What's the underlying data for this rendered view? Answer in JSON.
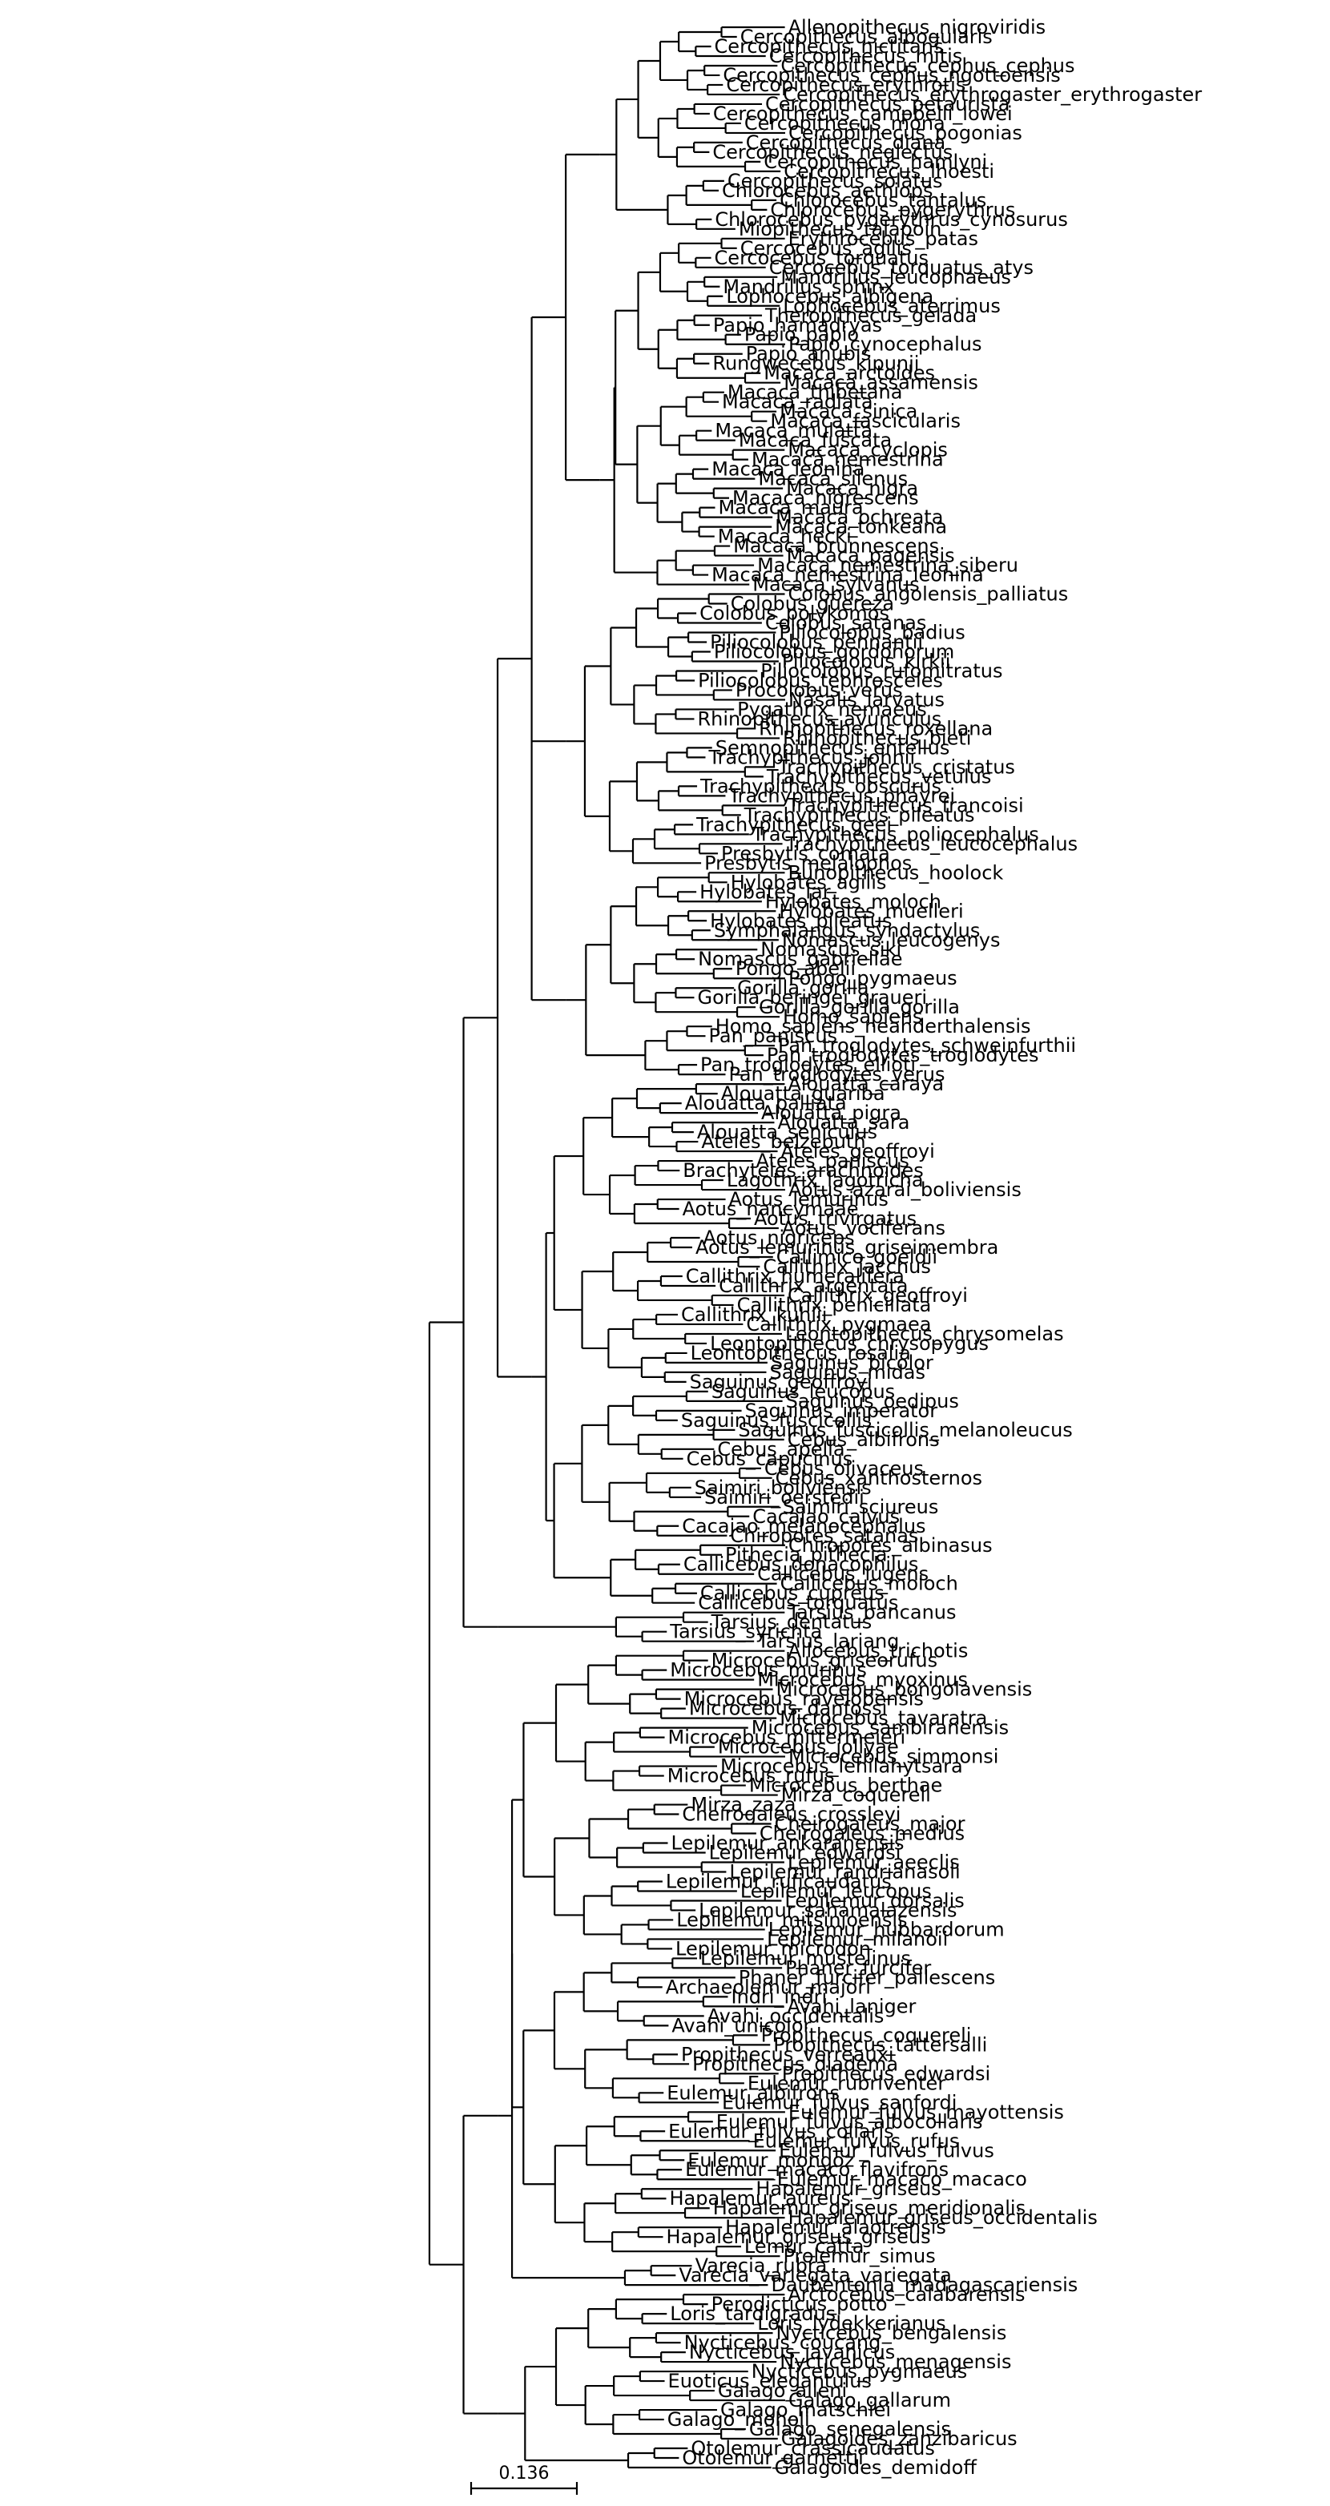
{
  "scale_bar": {
    "label": "0.136"
  },
  "tree": {
    "name": "root",
    "children": [
      {
        "name": "anthropoidea",
        "children": [
          {
            "name": "haplorhini-main",
            "children": [
              {
                "name": "catarrhini",
                "children": [
                  {
                    "name": "cercopithecidae",
                    "children": [
                      {
                        "name": "cercopithecini",
                        "leaves": [
                          "Allenopithecus_nigroviridis",
                          "Cercopithecus_albogularis",
                          "Cercopithecus_nictitans",
                          "Cercopithecus_mitis",
                          "Cercopithecus_cephus_cephus",
                          "Cercopithecus_cephus_ngottoensis",
                          "Cercopithecus_erythrotis",
                          "Cercopithecus_erythrogaster_erythrogaster",
                          "Cercopithecus_petaurista",
                          "Cercopithecus_campbelli_lowei",
                          "Cercopithecus_mona",
                          "Cercopithecus_pogonias",
                          "Cercopithecus_diana",
                          "Cercopithecus_neglectus",
                          "Cercopithecus_hamlyni",
                          "Cercopithecus_lhoesti",
                          "Cercopithecus_solatus",
                          "Chlorocebus_aethiops",
                          "Chlorocebus_tantalus",
                          "Chlorocebus_pygerythrus",
                          "Chlorocebus_pygerythrus_cynosurus",
                          "Miopithecus_talapoin"
                        ]
                      },
                      {
                        "name": "papionini",
                        "leaves": [
                          "Erythrocebus_patas",
                          "Cercocebus_agilis",
                          "Cercocebus_torquatus",
                          "Cercocebus_torquatus_atys",
                          "Mandrillus_leucophaeus",
                          "Mandrillus_sphinx",
                          "Lophocebus_albigena",
                          "Lophocebus_aterrimus",
                          "Theropithecus_gelada",
                          "Papio_hamadryas",
                          "Papio_papio",
                          "Papio_cynocephalus",
                          "Papio_anubis",
                          "Rungwecebus_kipunji",
                          "Macaca_arctoides",
                          "Macaca_assamensis",
                          "Macaca_thibetana",
                          "Macaca_radiata",
                          "Macaca_sinica",
                          "Macaca_fascicularis",
                          "Macaca_mulatta",
                          "Macaca_fuscata",
                          "Macaca_cyclopis",
                          "Macaca_nemestrina",
                          "Macaca_leonina",
                          "Macaca_silenus",
                          "Macaca_nigra",
                          "Macaca_nigrescens",
                          "Macaca_maura",
                          "Macaca_ochreata",
                          "Macaca_tonkeana",
                          "Macaca_hecki",
                          "Macaca_brunnescens",
                          "Macaca_pagensis",
                          "Macaca_nemestrina_siberu",
                          "Macaca_nemestrina_leonina",
                          "Macaca_sylvanus"
                        ]
                      }
                    ]
                  },
                  {
                    "name": "colobinae",
                    "leaves": [
                      "Colobus_angolensis_palliatus",
                      "Colobus_guereza",
                      "Colobus_polykomos",
                      "Colobus_satanas",
                      "Piliocolobus_badius",
                      "Piliocolobus_pennantii",
                      "Piliocolobus_gordonorum",
                      "Piliocolobus_kirkii",
                      "Piliocolobus_rufomitratus",
                      "Piliocolobus_tephrosceles",
                      "Procolobus_verus",
                      "Nasalis_larvatus",
                      "Pygathrix_nemaeus",
                      "Rhinopithecus_avunculus",
                      "Rhinopithecus_roxellana",
                      "Rhinopithecus_bieti",
                      "Semnopithecus_entellus",
                      "Trachypithecus_johnii",
                      "Trachypithecus_cristatus",
                      "Trachypithecus_vetulus",
                      "Trachypithecus_obscurus",
                      "Trachypithecus_phayrei",
                      "Trachypithecus_francoisi",
                      "Trachypithecus_pileatus",
                      "Trachypithecus_geei",
                      "Trachypithecus_poliocephalus",
                      "Trachypithecus_leucocephalus",
                      "Presbytis_comata",
                      "Presbytis_melalophos"
                    ]
                  },
                  {
                    "name": "hominoidea",
                    "leaves": [
                      "Bunopithecus_hoolock",
                      "Hylobates_agilis",
                      "Hylobates_lar",
                      "Hylobates_moloch",
                      "Hylobates_muelleri",
                      "Hylobates_pileatus",
                      "Symphalangus_syndactylus",
                      "Nomascus_leucogenys",
                      "Nomascus_siki",
                      "Nomascus_gabriellae",
                      "Pongo_abelii",
                      "Pongo_pygmaeus",
                      "Gorilla_gorilla",
                      "Gorilla_beringei_graueri",
                      "Gorilla_gorilla_gorilla",
                      "Homo_sapiens",
                      "Homo_sapiens_neanderthalensis",
                      "Pan_paniscus",
                      "Pan_troglodytes_schweinfurthii",
                      "Pan_troglodytes_troglodytes",
                      "Pan_troglodytes_ellioti",
                      "Pan_troglodytes_verus"
                    ]
                  }
                ]
              },
              {
                "name": "platyrrhini",
                "leaves": [
                  "Alouatta_caraya",
                  "Alouatta_guariba",
                  "Alouatta_palliata",
                  "Alouatta_pigra",
                  "Alouatta_sara",
                  "Alouatta_seniculus",
                  "Ateles_belzebuth",
                  "Ateles_geoffroyi",
                  "Ateles_paniscus",
                  "Brachyteles_arachnoides",
                  "Lagothrix_lagotricha",
                  "Aotus_azarai_boliviensis",
                  "Aotus_lemurinus",
                  "Aotus_nancymaae",
                  "Aotus_trivirgatus",
                  "Aotus_vociferans",
                  "Aotus_nigriceps",
                  "Aotus_lemurinus_griseimembra",
                  "Callimico_goeldii",
                  "Callithrix_jacchus",
                  "Callithrix_humeralifera",
                  "Callithrix_argentata",
                  "Callithrix_geoffroyi",
                  "Callithrix_penicillata",
                  "Callithrix_kuhlii",
                  "Callithrix_pygmaea",
                  "Leontopithecus_chrysomelas",
                  "Leontopithecus_chrysopygus",
                  "Leontopithecus_rosalia",
                  "Saguinus_bicolor",
                  "Saguinus_midas",
                  "Saguinus_geoffroyi",
                  "Saguinus_leucopus",
                  "Saguinus_oedipus",
                  "Saguinus_imperator",
                  "Saguinus_fuscicollis",
                  "Saguinus_fuscicollis_melanoleucus",
                  "Cebus_albifrons",
                  "Cebus_apella",
                  "Cebus_capucinus",
                  "Cebus_olivaceus",
                  "Cebus_xanthosternos",
                  "Saimiri_boliviensis",
                  "Saimiri_oerstedii",
                  "Saimiri_sciureus",
                  "Cacajao_calvus",
                  "Cacajao_melanocephalus",
                  "Chiropotes_satanas",
                  "Chiropotes_albinasus",
                  "Pithecia_pithecia",
                  "Callicebus_donacophilus",
                  "Callicebus_lugens",
                  "Callicebus_moloch",
                  "Callicebus_cupreus",
                  "Callicebus_torquatus"
                ]
              }
            ]
          },
          {
            "name": "tarsiidae",
            "leaves": [
              "Tarsius_bancanus",
              "Tarsius_dentatus",
              "Tarsius_syrichta",
              "Tarsius_lariang"
            ]
          }
        ]
      },
      {
        "name": "strepsirrhini",
        "children": [
          {
            "name": "lemuriformes",
            "leaves": [
              "Allocebus_trichotis",
              "Microcebus_griseorufus",
              "Microcebus_murinus",
              "Microcebus_myoxinus",
              "Microcebus_bongolavensis",
              "Microcebus_ravelobensis",
              "Microcebus_danfossi",
              "Microcebus_tavaratra",
              "Microcebus_sambiranensis",
              "Microcebus_mittermeieri",
              "Microcebus_jollyae",
              "Microcebus_simmonsi",
              "Microcebus_lehilahytsara",
              "Microcebus_rufus",
              "Microcebus_berthae",
              "Mirza_coquereli",
              "Mirza_zaza",
              "Cheirogaleus_crossleyi",
              "Cheirogaleus_major",
              "Cheirogaleus_medius",
              "Lepilemur_ankaranensis",
              "Lepilemur_edwardsi",
              "Lepilemur_aeeclis",
              "Lepilemur_randrianasoli",
              "Lepilemur_ruficaudatus",
              "Lepilemur_leucopus",
              "Lepilemur_dorsalis",
              "Lepilemur_sahamalazensis",
              "Lepilemur_mitsinjoensis",
              "Lepilemur_hubbardorum",
              "Lepilemur_milanoii",
              "Lepilemur_microdon",
              "Lepilemur_mustelinus",
              "Phaner_furcifer",
              "Phaner_furcifer_pallescens",
              "Archaeolemur_majori",
              "Indri_indri",
              "Avahi_laniger",
              "Avahi_occidentalis",
              "Avahi_unicolor",
              "Propithecus_coquereli",
              "Propithecus_tattersalli",
              "Propithecus_verreauxi",
              "Propithecus_diadema",
              "Propithecus_edwardsi",
              "Eulemur_rubriventer",
              "Eulemur_albifrons",
              "Eulemur_fulvus_sanfordi",
              "Eulemur_fulvus_mayottensis",
              "Eulemur_fulvus_albocollaris",
              "Eulemur_fulvus_collaris",
              "Eulemur_fulvus_rufus",
              "Eulemur_fulvus_fulvus",
              "Eulemur_mongoz",
              "Eulemur_macaco_flavifrons",
              "Eulemur_macaco_macaco",
              "Hapalemur_griseus",
              "Hapalemur_aureus",
              "Hapalemur_griseus_meridionalis",
              "Hapalemur_griseus_occidentalis",
              "Hapalemur_alaotrensis",
              "Hapalemur_griseus_griseus",
              "Lemur_catta",
              "Prolemur_simus",
              "Varecia_rubra",
              "Varecia_variegata_variegata",
              "Daubentonia_madagascariensis"
            ]
          },
          {
            "name": "lorisiformes",
            "leaves": [
              "Arctocebus_calabarensis",
              "Perodicticus_potto",
              "Loris_tardigradus",
              "Loris_lydekkerianus",
              "Nycticebus_bengalensis",
              "Nycticebus_coucang",
              "Nycticebus_javanicus",
              "Nycticebus_menagensis",
              "Nycticebus_pygmaeus",
              "Euoticus_elegantulus",
              "Galago_alleni",
              "Galago_gallarum",
              "Galago_matschiei",
              "Galago_moholi",
              "Galago_senegalensis",
              "Galagoides_zanzibaricus",
              "Otolemur_crassicaudatus",
              "Otolemur_garnettii",
              "Galagoides_demidoff"
            ]
          }
        ]
      }
    ]
  }
}
